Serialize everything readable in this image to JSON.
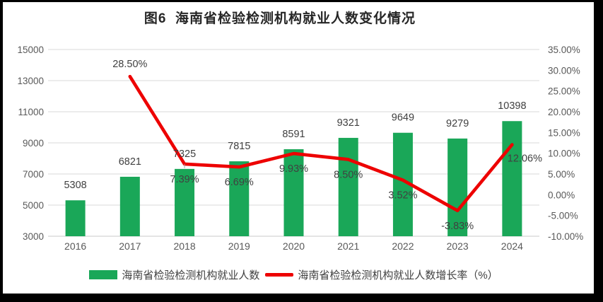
{
  "frame": {
    "border_color": "#000000",
    "background_color": "#ffffff"
  },
  "chart_data": {
    "type": "combo",
    "title": "图6  海南省检验检测机构就业人数变化情况",
    "categories": [
      "2016",
      "2017",
      "2018",
      "2019",
      "2020",
      "2021",
      "2022",
      "2023",
      "2024"
    ],
    "series": [
      {
        "name": "海南省检验检测机构就业人数",
        "type": "bar",
        "axis": "left",
        "color": "#1aa758",
        "values": [
          5308,
          6821,
          7325,
          7815,
          8591,
          9321,
          9649,
          9279,
          10398
        ],
        "labels": [
          "5308",
          "6821",
          "7325",
          "7815",
          "8591",
          "9321",
          "9649",
          "9279",
          "10398"
        ],
        "leaders": [
          0,
          0,
          1,
          0,
          0,
          0,
          0,
          0,
          0
        ]
      },
      {
        "name": "海南省检验检测机构就业人数增长率（%）",
        "type": "line",
        "axis": "right",
        "color": "#ed0000",
        "values": [
          null,
          28.5,
          7.39,
          6.69,
          9.93,
          8.5,
          3.52,
          -3.83,
          12.06
        ],
        "labels": [
          "",
          "28.50%",
          "7.39%",
          "6.69%",
          "9.93%",
          "8.50%",
          "3.52%",
          "-3.83%",
          "12.06%"
        ],
        "label_positions": [
          "",
          "above",
          "below",
          "below",
          "below",
          "below",
          "below",
          "below",
          "below-right"
        ]
      }
    ],
    "left_axis": {
      "min": 3000,
      "max": 15000,
      "tick_values": [
        15000,
        13000,
        11000,
        9000,
        7000,
        5000,
        3000
      ],
      "tick_labels": [
        "15000",
        "13000",
        "11000",
        "9000",
        "7000",
        "5000",
        "3000"
      ]
    },
    "right_axis": {
      "min": -10,
      "max": 35,
      "tick_values": [
        35,
        30,
        25,
        20,
        15,
        10,
        5,
        0,
        -5,
        -10
      ],
      "tick_labels": [
        "35.00%",
        "30.00%",
        "25.00%",
        "20.00%",
        "15.00%",
        "10.00%",
        "5.00%",
        "0.00%",
        "-5.00%",
        "-10.00%"
      ]
    },
    "grid": "horizontal",
    "legend_position": "bottom",
    "style": {
      "gridline_color": "#d9d9d9",
      "axis_line_color": "#c9c9c9",
      "tick_label_color": "#595959",
      "data_label_color": "#404040",
      "leader_line_color": "#a6a6a6"
    }
  },
  "legend": {
    "items": [
      {
        "label": "海南省检验检测机构就业人数",
        "marker": "bar-swatch",
        "color": "#1aa758"
      },
      {
        "label": "海南省检验检测机构就业人数增长率（%）",
        "marker": "line-swatch",
        "color": "#ed0000"
      }
    ]
  }
}
